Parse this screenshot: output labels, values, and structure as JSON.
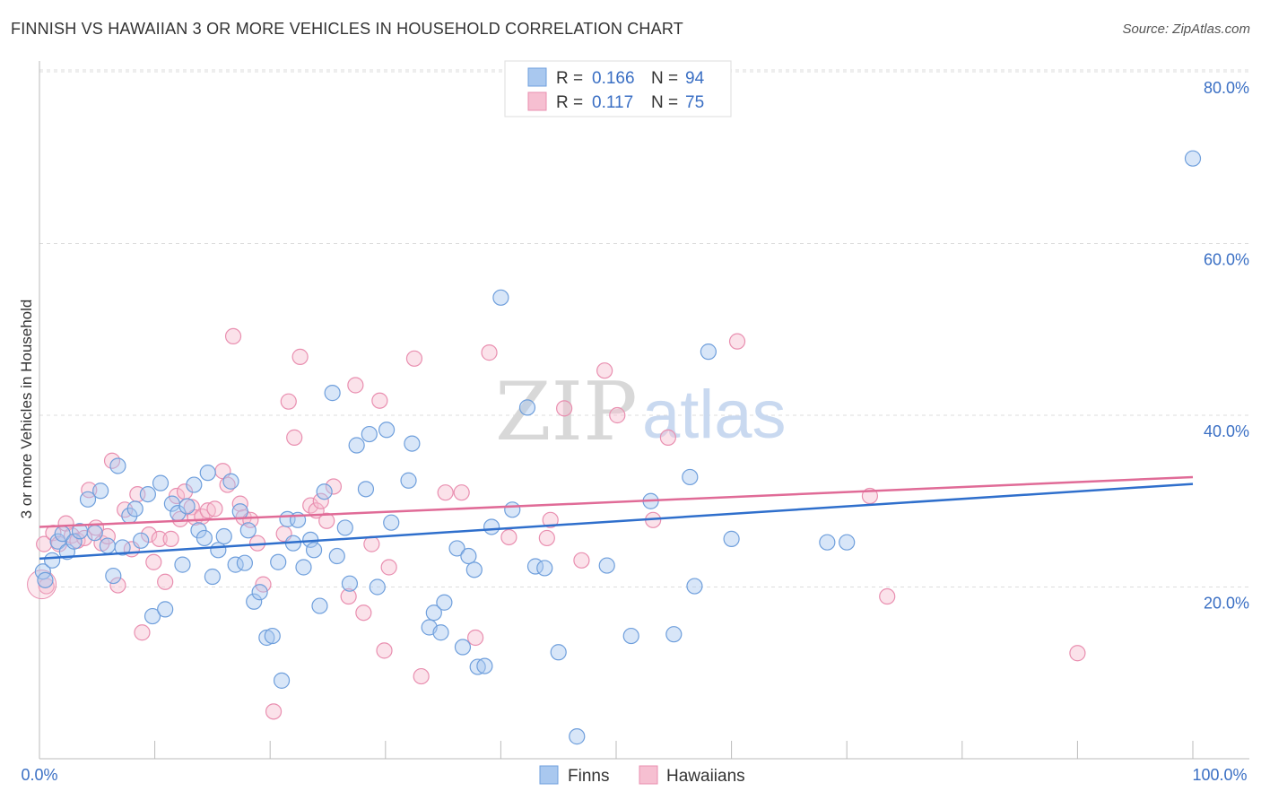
{
  "title": "FINNISH VS HAWAIIAN 3 OR MORE VEHICLES IN HOUSEHOLD CORRELATION CHART",
  "source": "Source: ZipAtlas.com",
  "watermark": {
    "zip": "ZIP",
    "atlas": "atlas"
  },
  "colors": {
    "finns_fill": "#a9c8ef",
    "finns_stroke": "#6f9fdc",
    "finns_line": "#2f6fcc",
    "hawaiians_fill": "#f6bfd1",
    "hawaiians_stroke": "#e98fb0",
    "hawaiians_line": "#e06b97",
    "tick_text": "#3a6fc4",
    "grid": "#dddddd"
  },
  "stats_legend": [
    {
      "r_label": "R =",
      "r_value": "0.166",
      "n_label": "N =",
      "n_value": "94"
    },
    {
      "r_label": "R =",
      "r_value": "0.117",
      "n_label": "N =",
      "n_value": "75"
    }
  ],
  "chart_data": {
    "type": "scatter",
    "title": "FINNISH VS HAWAIIAN 3 OR MORE VEHICLES IN HOUSEHOLD CORRELATION CHART",
    "xlabel": "",
    "ylabel": "3 or more Vehicles in Household",
    "xlim": [
      0,
      100
    ],
    "ylim": [
      0,
      80
    ],
    "x_tick_labels": [
      "0.0%",
      "100.0%"
    ],
    "y_ticks": [
      20,
      40,
      60,
      80
    ],
    "y_tick_labels": [
      "20.0%",
      "40.0%",
      "60.0%",
      "80.0%"
    ],
    "grid": "horizontal dashed",
    "legend_position": "bottom-center",
    "series": [
      {
        "name": "Finns",
        "trend": {
          "x": [
            0,
            100
          ],
          "y": [
            23.3,
            32.0
          ]
        },
        "points": [
          [
            0.3,
            21.8
          ],
          [
            0.5,
            20.8
          ],
          [
            1.1,
            23.1
          ],
          [
            1.6,
            25.3
          ],
          [
            2.0,
            26.2
          ],
          [
            2.4,
            24.1
          ],
          [
            3.0,
            25.3
          ],
          [
            3.5,
            26.5
          ],
          [
            4.2,
            30.2
          ],
          [
            4.8,
            26.3
          ],
          [
            5.3,
            31.2
          ],
          [
            5.9,
            24.8
          ],
          [
            6.4,
            21.3
          ],
          [
            6.8,
            34.1
          ],
          [
            7.2,
            24.6
          ],
          [
            7.8,
            28.3
          ],
          [
            8.3,
            29.1
          ],
          [
            8.8,
            25.4
          ],
          [
            9.4,
            30.8
          ],
          [
            9.8,
            16.6
          ],
          [
            10.5,
            32.1
          ],
          [
            10.9,
            17.4
          ],
          [
            11.5,
            29.7
          ],
          [
            12.0,
            28.6
          ],
          [
            12.4,
            22.6
          ],
          [
            12.8,
            29.4
          ],
          [
            13.4,
            31.9
          ],
          [
            13.8,
            26.6
          ],
          [
            14.3,
            25.7
          ],
          [
            14.6,
            33.3
          ],
          [
            15.0,
            21.2
          ],
          [
            15.5,
            24.3
          ],
          [
            16.0,
            25.9
          ],
          [
            16.6,
            32.3
          ],
          [
            17.0,
            22.6
          ],
          [
            17.4,
            28.8
          ],
          [
            17.8,
            22.8
          ],
          [
            18.1,
            26.6
          ],
          [
            18.6,
            18.3
          ],
          [
            19.1,
            19.4
          ],
          [
            19.7,
            14.1
          ],
          [
            20.2,
            14.3
          ],
          [
            20.7,
            22.9
          ],
          [
            21.0,
            9.1
          ],
          [
            21.5,
            27.9
          ],
          [
            22.0,
            25.1
          ],
          [
            22.4,
            27.8
          ],
          [
            22.9,
            22.3
          ],
          [
            23.5,
            25.5
          ],
          [
            23.8,
            24.3
          ],
          [
            24.3,
            17.8
          ],
          [
            24.7,
            31.1
          ],
          [
            25.4,
            42.6
          ],
          [
            25.8,
            23.6
          ],
          [
            26.5,
            26.9
          ],
          [
            26.9,
            20.4
          ],
          [
            27.5,
            36.5
          ],
          [
            28.3,
            31.4
          ],
          [
            28.6,
            37.8
          ],
          [
            29.3,
            20.0
          ],
          [
            30.1,
            38.3
          ],
          [
            30.5,
            27.5
          ],
          [
            32.0,
            32.4
          ],
          [
            32.3,
            36.7
          ],
          [
            33.8,
            15.3
          ],
          [
            34.2,
            17.0
          ],
          [
            34.8,
            14.7
          ],
          [
            35.1,
            18.2
          ],
          [
            36.2,
            24.5
          ],
          [
            36.7,
            13.0
          ],
          [
            37.2,
            23.6
          ],
          [
            37.7,
            22.0
          ],
          [
            38.0,
            10.7
          ],
          [
            38.6,
            10.8
          ],
          [
            39.2,
            27.0
          ],
          [
            40.0,
            53.7
          ],
          [
            41.0,
            29.0
          ],
          [
            42.3,
            40.9
          ],
          [
            43.0,
            22.4
          ],
          [
            43.8,
            22.2
          ],
          [
            45.0,
            12.4
          ],
          [
            46.6,
            2.6
          ],
          [
            49.2,
            22.5
          ],
          [
            51.3,
            14.3
          ],
          [
            53.0,
            30.0
          ],
          [
            55.0,
            14.5
          ],
          [
            56.4,
            32.8
          ],
          [
            56.8,
            20.1
          ],
          [
            58.0,
            47.4
          ],
          [
            60.0,
            25.6
          ],
          [
            68.3,
            25.2
          ],
          [
            70.0,
            25.2
          ],
          [
            100.0,
            69.9
          ]
        ]
      },
      {
        "name": "Hawaiians",
        "trend": {
          "x": [
            0,
            100
          ],
          "y": [
            27.0,
            32.8
          ]
        },
        "points": [
          [
            0.4,
            25.0
          ],
          [
            0.6,
            20.1
          ],
          [
            1.2,
            26.3
          ],
          [
            1.7,
            25.0
          ],
          [
            2.3,
            27.4
          ],
          [
            2.8,
            26.0
          ],
          [
            3.3,
            25.4
          ],
          [
            3.9,
            25.7
          ],
          [
            4.3,
            31.3
          ],
          [
            4.9,
            26.9
          ],
          [
            5.4,
            25.1
          ],
          [
            5.9,
            25.9
          ],
          [
            6.3,
            34.7
          ],
          [
            6.8,
            20.2
          ],
          [
            7.4,
            29.0
          ],
          [
            8.0,
            24.4
          ],
          [
            8.5,
            30.8
          ],
          [
            8.9,
            14.7
          ],
          [
            9.5,
            26.1
          ],
          [
            9.9,
            22.9
          ],
          [
            10.4,
            25.6
          ],
          [
            10.9,
            20.6
          ],
          [
            11.4,
            25.6
          ],
          [
            11.9,
            30.6
          ],
          [
            12.2,
            27.9
          ],
          [
            12.6,
            31.1
          ],
          [
            13.2,
            29.3
          ],
          [
            13.5,
            28.1
          ],
          [
            14.1,
            28.2
          ],
          [
            14.6,
            28.9
          ],
          [
            15.2,
            29.1
          ],
          [
            15.9,
            33.5
          ],
          [
            16.3,
            31.9
          ],
          [
            16.8,
            49.2
          ],
          [
            17.4,
            29.7
          ],
          [
            17.7,
            28.1
          ],
          [
            18.3,
            27.8
          ],
          [
            18.9,
            25.1
          ],
          [
            19.4,
            20.3
          ],
          [
            20.3,
            5.5
          ],
          [
            21.2,
            26.2
          ],
          [
            21.6,
            41.6
          ],
          [
            22.1,
            37.4
          ],
          [
            22.6,
            46.8
          ],
          [
            23.5,
            29.5
          ],
          [
            24.0,
            28.9
          ],
          [
            24.4,
            30.0
          ],
          [
            24.9,
            27.7
          ],
          [
            25.5,
            31.7
          ],
          [
            26.8,
            18.9
          ],
          [
            27.4,
            43.5
          ],
          [
            28.1,
            17.0
          ],
          [
            28.8,
            25.0
          ],
          [
            29.5,
            41.7
          ],
          [
            29.9,
            12.6
          ],
          [
            30.3,
            22.3
          ],
          [
            32.5,
            46.6
          ],
          [
            33.1,
            9.6
          ],
          [
            35.2,
            31.0
          ],
          [
            36.6,
            31.0
          ],
          [
            37.8,
            14.1
          ],
          [
            39.0,
            47.3
          ],
          [
            40.7,
            25.8
          ],
          [
            44.0,
            25.7
          ],
          [
            44.3,
            27.8
          ],
          [
            45.5,
            40.8
          ],
          [
            47.0,
            23.1
          ],
          [
            49.0,
            45.2
          ],
          [
            50.1,
            40.0
          ],
          [
            53.2,
            27.8
          ],
          [
            54.5,
            37.4
          ],
          [
            60.5,
            48.6
          ],
          [
            73.5,
            18.9
          ],
          [
            72.0,
            30.6
          ],
          [
            90.0,
            12.3
          ]
        ]
      }
    ]
  },
  "bottom_legend": [
    {
      "label": "Finns"
    },
    {
      "label": "Hawaiians"
    }
  ]
}
